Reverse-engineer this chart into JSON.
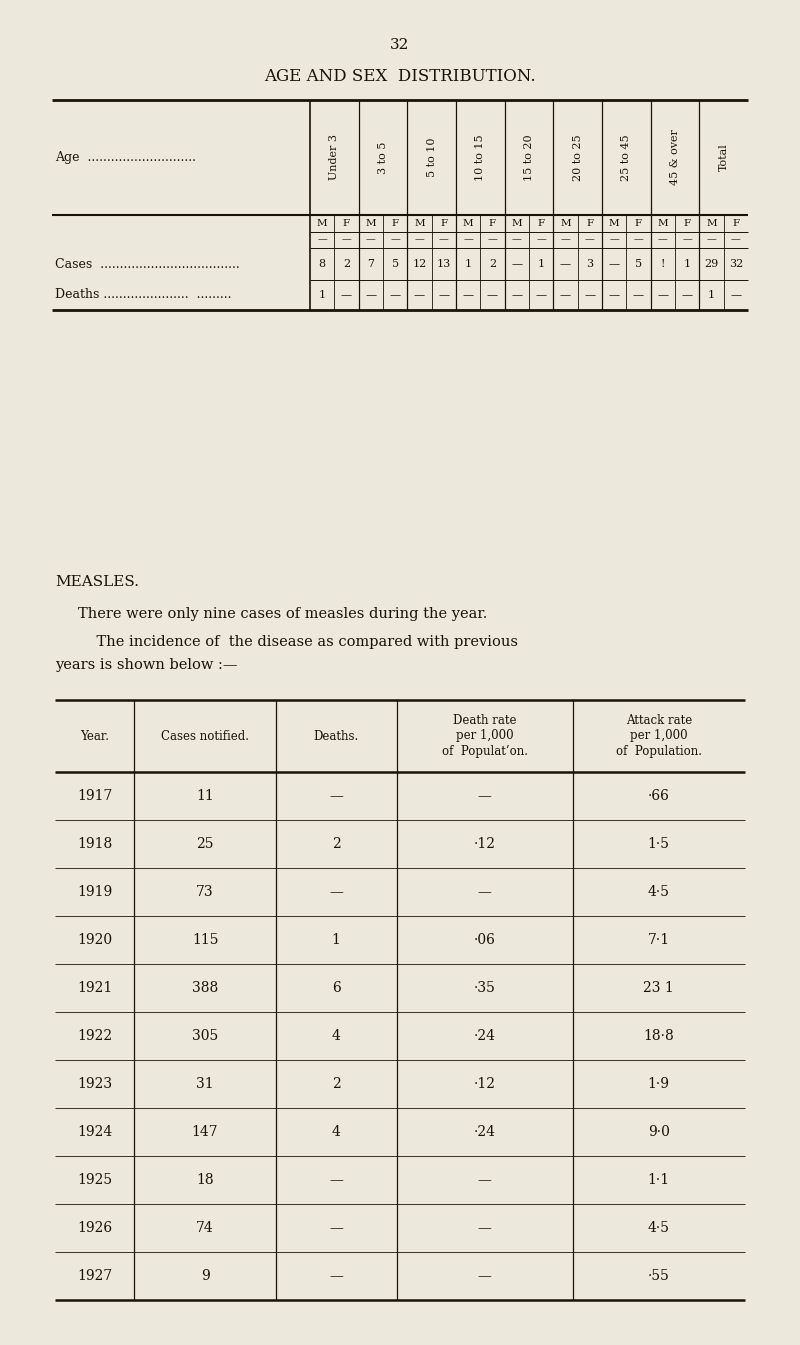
{
  "page_number": "32",
  "title": "AGE AND SEX  DISTRIBUTION.",
  "bg_color": "#ede8dc",
  "text_color": "#1a1209",
  "age_groups": [
    "Under 3",
    "3 to 5",
    "5 to 10",
    "10 to 15",
    "15 to 20",
    "20 to 25",
    "25 to 45",
    "45 & over",
    "Total"
  ],
  "age_label": "Age  ............................",
  "cases_label": "Cases  ....................................",
  "deaths_label": "Deaths ......................  .........",
  "cases_row": [
    "8",
    "2",
    "7",
    "5",
    "12",
    "13",
    "1",
    "2",
    "—",
    "1",
    "—",
    "3",
    "—",
    "5",
    "!",
    "1",
    "29",
    "32"
  ],
  "deaths_row": [
    "1",
    "—",
    "—",
    "—",
    "—",
    "—",
    "—",
    "—",
    "—",
    "—",
    "—",
    "—",
    "—",
    "—",
    "—",
    "—",
    "1",
    "—"
  ],
  "measles_heading": "MEASLES.",
  "para1": "There were only nine cases of measles during the year.",
  "para2_line1": "    The incidence of  the disease as compared with previous",
  "para2_line2": "years is shown below :—",
  "table2_col0_header": "Year.",
  "table2_col1_header": "Cases notified.",
  "table2_col2_header": "Deaths.",
  "table2_col3_header": "Death rate\nper 1,000\nof  Populat’on.",
  "table2_col4_header": "Attack rate\nper 1,000\nof  Population.",
  "table2_rows": [
    [
      "1917",
      "11",
      "—",
      "—",
      "·66"
    ],
    [
      "1918",
      "25",
      "2",
      "·12",
      "1·5"
    ],
    [
      "1919",
      "73",
      "—",
      "—",
      "4·5"
    ],
    [
      "1920",
      "115",
      "1",
      "·06",
      "7·1"
    ],
    [
      "1921",
      "388",
      "6",
      "·35",
      "23 1"
    ],
    [
      "1922",
      "305",
      "4",
      "·24",
      "18·8"
    ],
    [
      "1923",
      "31",
      "2",
      "·12",
      "1·9"
    ],
    [
      "1924",
      "147",
      "4",
      "·24",
      "9·0"
    ],
    [
      "1925",
      "18",
      "—",
      "—",
      "1·1"
    ],
    [
      "1926",
      "74",
      "—",
      "—",
      "4·5"
    ],
    [
      "1927",
      "9",
      "—",
      "—",
      "·55"
    ]
  ]
}
